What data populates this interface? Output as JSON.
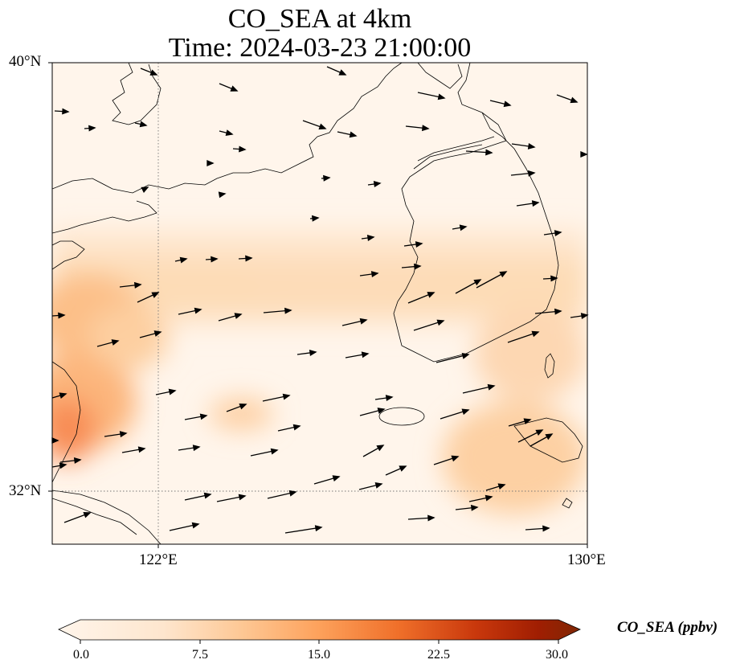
{
  "title": {
    "line1": "CO_SEA at 4km",
    "line2": "Time: 2024-03-23 21:00:00"
  },
  "axes": {
    "lat_ticks": [
      "40°N",
      "32°N"
    ],
    "lon_ticks": [
      "122°E",
      "130°E"
    ]
  },
  "colorbar": {
    "label": "CO_SEA (ppbv)",
    "ticks": [
      "0.0",
      "7.5",
      "15.0",
      "22.5",
      "30.0"
    ],
    "colors": [
      "#fff5eb",
      "#fdd9b4",
      "#fda762",
      "#f3701b",
      "#c54102",
      "#7f2704"
    ]
  },
  "chart_data": {
    "type": "heatmap",
    "variable": "CO_SEA",
    "units": "ppbv",
    "lat_range": [
      31,
      40
    ],
    "lon_range": [
      120,
      130
    ],
    "value_range": [
      0,
      30
    ],
    "gridlines": {
      "lat": [
        32
      ],
      "lon": [
        122
      ]
    },
    "concentration_features": [
      {
        "region": "coastal plain near 32.5N 120.3E",
        "value": 13
      },
      {
        "region": "west coast near 34N 120.3E",
        "value": 10
      },
      {
        "region": "zonal band 34-35N",
        "value": 5
      },
      {
        "region": "south sea near 33N 128-130E",
        "value": 6
      }
    ],
    "wind_vectors": "arrows pointing east to east-northeast across domain"
  }
}
